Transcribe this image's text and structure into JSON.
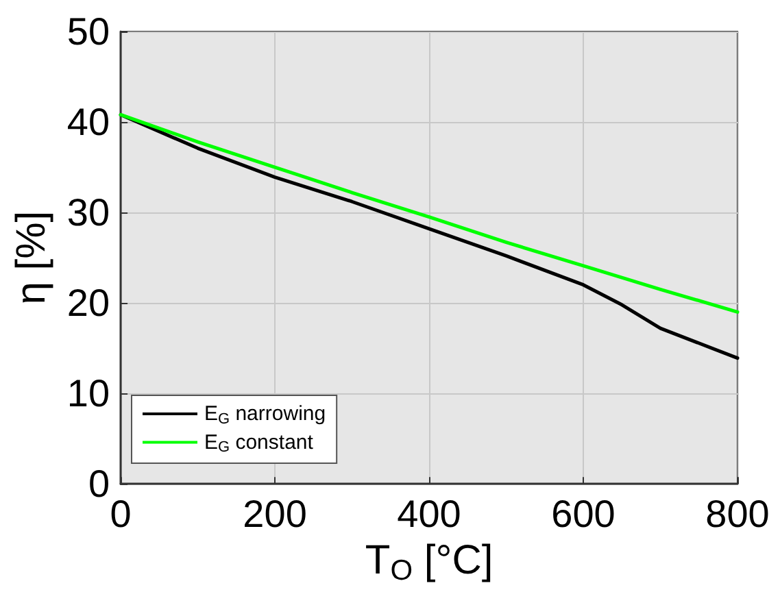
{
  "chart_data": {
    "type": "line",
    "xlabel": "T$_{O}$ [°C]",
    "ylabel": "η [%]",
    "xlim": [
      0,
      800
    ],
    "xticks": [
      0,
      200,
      400,
      600,
      800
    ],
    "ylim": [
      0,
      50
    ],
    "yticks": [
      0,
      10,
      20,
      30,
      40,
      50
    ],
    "grid": true,
    "legend": "bottom left",
    "marker": "none",
    "line_style": "solid",
    "series": [
      {
        "name": "E$_{G}$ narrowing",
        "color": "#000000",
        "x": [
          0,
          100,
          200,
          300,
          400,
          500,
          600,
          650,
          700,
          800
        ],
        "values": [
          40.8,
          37.1,
          33.9,
          31.2,
          28.2,
          25.2,
          22.0,
          19.8,
          17.2,
          13.9
        ]
      },
      {
        "name": "E$_{G}$ constant",
        "color": "#00ff00",
        "x": [
          0,
          100,
          200,
          300,
          400,
          500,
          600,
          700,
          800
        ],
        "values": [
          40.8,
          37.8,
          35.0,
          32.2,
          29.5,
          26.7,
          24.1,
          21.5,
          19.0
        ]
      }
    ]
  }
}
